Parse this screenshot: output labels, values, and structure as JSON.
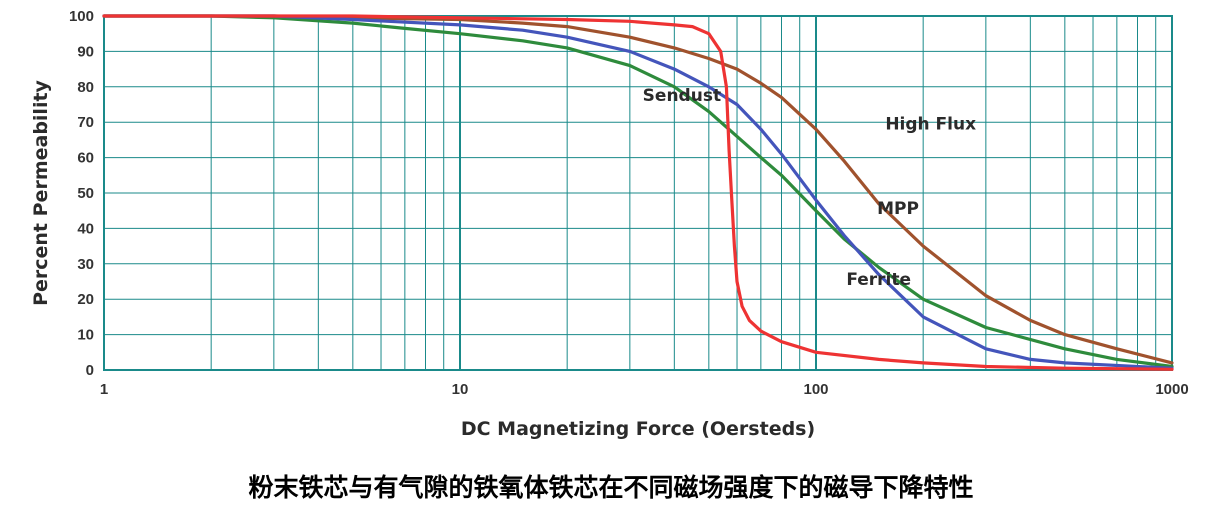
{
  "caption": "粉末铁芯与有气隙的铁氧体铁芯在不同磁场强度下的磁导下降特性",
  "chart_data": {
    "type": "line",
    "title": "",
    "xlabel": "DC Magnetizing Force (Oersteds)",
    "ylabel": "Percent Permeability",
    "xscale": "log",
    "xlim": [
      1,
      1000
    ],
    "ylim": [
      0,
      100
    ],
    "xticks": [
      "1",
      "10",
      "100",
      "1000"
    ],
    "yticks": [
      "0",
      "10",
      "20",
      "30",
      "40",
      "50",
      "60",
      "70",
      "80",
      "90",
      "100"
    ],
    "grid": true,
    "colors": {
      "grid": "#1a8a8a",
      "frame": "#1a8a8a"
    },
    "series": [
      {
        "name": "Sendust",
        "color": "#2e8b3c",
        "points": [
          [
            1,
            100
          ],
          [
            2,
            100
          ],
          [
            3,
            99.5
          ],
          [
            5,
            98
          ],
          [
            7,
            96.5
          ],
          [
            10,
            95
          ],
          [
            15,
            93
          ],
          [
            20,
            91
          ],
          [
            30,
            86
          ],
          [
            40,
            80
          ],
          [
            50,
            73
          ],
          [
            60,
            66
          ],
          [
            70,
            60
          ],
          [
            80,
            55
          ],
          [
            100,
            45
          ],
          [
            120,
            37
          ],
          [
            150,
            29
          ],
          [
            200,
            20
          ],
          [
            300,
            12
          ],
          [
            500,
            6
          ],
          [
            700,
            3
          ],
          [
            1000,
            1
          ]
        ]
      },
      {
        "name": "High Flux",
        "color": "#a0522d",
        "points": [
          [
            1,
            100
          ],
          [
            3,
            100
          ],
          [
            5,
            99.5
          ],
          [
            10,
            99
          ],
          [
            15,
            98
          ],
          [
            20,
            97
          ],
          [
            30,
            94
          ],
          [
            40,
            91
          ],
          [
            50,
            88
          ],
          [
            60,
            85
          ],
          [
            70,
            81
          ],
          [
            80,
            77
          ],
          [
            100,
            68
          ],
          [
            120,
            59
          ],
          [
            150,
            47
          ],
          [
            200,
            35
          ],
          [
            300,
            21
          ],
          [
            400,
            14
          ],
          [
            500,
            10
          ],
          [
            700,
            6
          ],
          [
            1000,
            2
          ]
        ]
      },
      {
        "name": "MPP",
        "color": "#4455bb",
        "points": [
          [
            1,
            100
          ],
          [
            3,
            100
          ],
          [
            5,
            99
          ],
          [
            10,
            97.5
          ],
          [
            15,
            96
          ],
          [
            20,
            94
          ],
          [
            30,
            90
          ],
          [
            40,
            85
          ],
          [
            50,
            80
          ],
          [
            60,
            75
          ],
          [
            70,
            68
          ],
          [
            80,
            61
          ],
          [
            100,
            48
          ],
          [
            120,
            38
          ],
          [
            150,
            27
          ],
          [
            200,
            15
          ],
          [
            300,
            6
          ],
          [
            400,
            3
          ],
          [
            500,
            2
          ],
          [
            1000,
            0.5
          ]
        ]
      },
      {
        "name": "Ferrite",
        "color": "#ee3333",
        "points": [
          [
            1,
            100
          ],
          [
            5,
            100
          ],
          [
            10,
            99.5
          ],
          [
            20,
            99
          ],
          [
            30,
            98.5
          ],
          [
            40,
            97.5
          ],
          [
            45,
            97
          ],
          [
            50,
            95
          ],
          [
            54,
            90
          ],
          [
            56,
            80
          ],
          [
            57,
            62
          ],
          [
            58,
            48
          ],
          [
            59,
            35
          ],
          [
            60,
            25
          ],
          [
            62,
            18
          ],
          [
            65,
            14
          ],
          [
            70,
            11
          ],
          [
            80,
            8
          ],
          [
            100,
            5
          ],
          [
            150,
            3
          ],
          [
            200,
            2
          ],
          [
            300,
            1
          ],
          [
            500,
            0.5
          ],
          [
            1000,
            0.2
          ]
        ]
      }
    ],
    "annotations": [
      {
        "text": "Sendust",
        "x": 42,
        "y": 76
      },
      {
        "text": "High Flux",
        "x": 210,
        "y": 68
      },
      {
        "text": "MPP",
        "x": 170,
        "y": 44
      },
      {
        "text": "Ferrite",
        "x": 150,
        "y": 24
      }
    ]
  }
}
